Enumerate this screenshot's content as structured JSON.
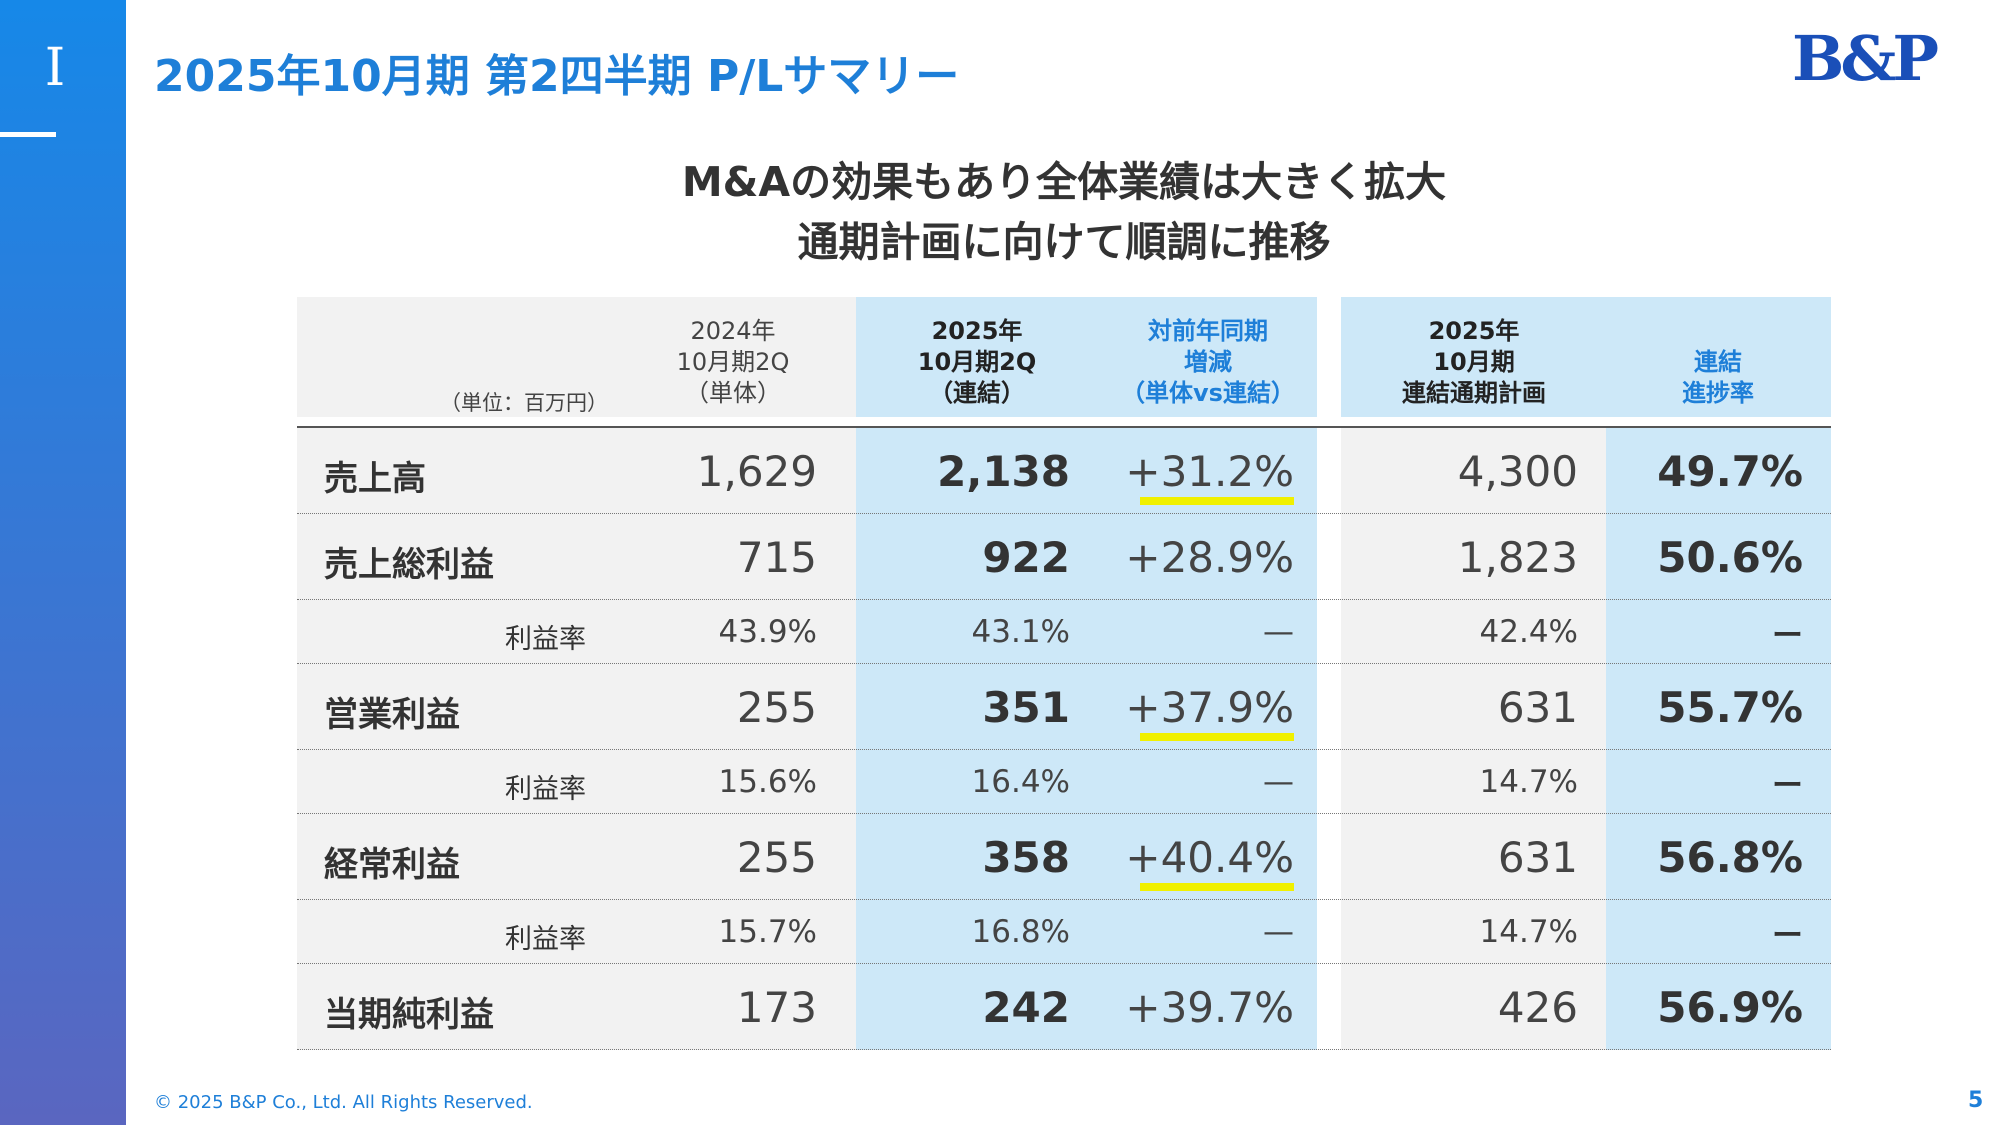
{
  "header": {
    "section": "I",
    "title": "2025年10月期 第2四半期 P/Lサマリー",
    "logo": "B&P"
  },
  "subtitle": [
    "M&Aの効果もあり全体業績は大きく拡大",
    "通期計画に向けて順調に推移"
  ],
  "table": {
    "unit": "（単位：百万円）",
    "columns": [
      [
        "2024年",
        "10月期2Q",
        "（単体）"
      ],
      [
        "2025年",
        "10月期2Q",
        "（連結）"
      ],
      [
        "対前年同期",
        "増減",
        "（単体vs連結）"
      ],
      [
        "2025年",
        "10月期",
        "連結通期計画"
      ],
      [
        "連結",
        "進捗率"
      ]
    ],
    "rows": [
      {
        "label": "売上高",
        "kind": "main",
        "highlight": true,
        "cells": [
          "1,629",
          "2,138",
          "+31.2%",
          "4,300",
          "49.7%"
        ]
      },
      {
        "label": "売上総利益",
        "kind": "main",
        "highlight": false,
        "cells": [
          "715",
          "922",
          "+28.9%",
          "1,823",
          "50.6%"
        ]
      },
      {
        "label": "利益率",
        "kind": "sub",
        "highlight": false,
        "cells": [
          "43.9%",
          "43.1%",
          "—",
          "42.4%",
          "ー"
        ]
      },
      {
        "label": "営業利益",
        "kind": "main",
        "highlight": true,
        "cells": [
          "255",
          "351",
          "+37.9%",
          "631",
          "55.7%"
        ]
      },
      {
        "label": "利益率",
        "kind": "sub",
        "highlight": false,
        "cells": [
          "15.6%",
          "16.4%",
          "—",
          "14.7%",
          "ー"
        ]
      },
      {
        "label": "経常利益",
        "kind": "main",
        "highlight": true,
        "cells": [
          "255",
          "358",
          "+40.4%",
          "631",
          "56.8%"
        ]
      },
      {
        "label": "利益率",
        "kind": "sub",
        "highlight": false,
        "cells": [
          "15.7%",
          "16.8%",
          "—",
          "14.7%",
          "ー"
        ]
      },
      {
        "label": "当期純利益",
        "kind": "main",
        "highlight": false,
        "cells": [
          "173",
          "242",
          "+39.7%",
          "426",
          "56.9%"
        ]
      }
    ]
  },
  "footer": {
    "copyright": "© 2025 B&P Co., Ltd. All Rights Reserved.",
    "page": "5"
  }
}
